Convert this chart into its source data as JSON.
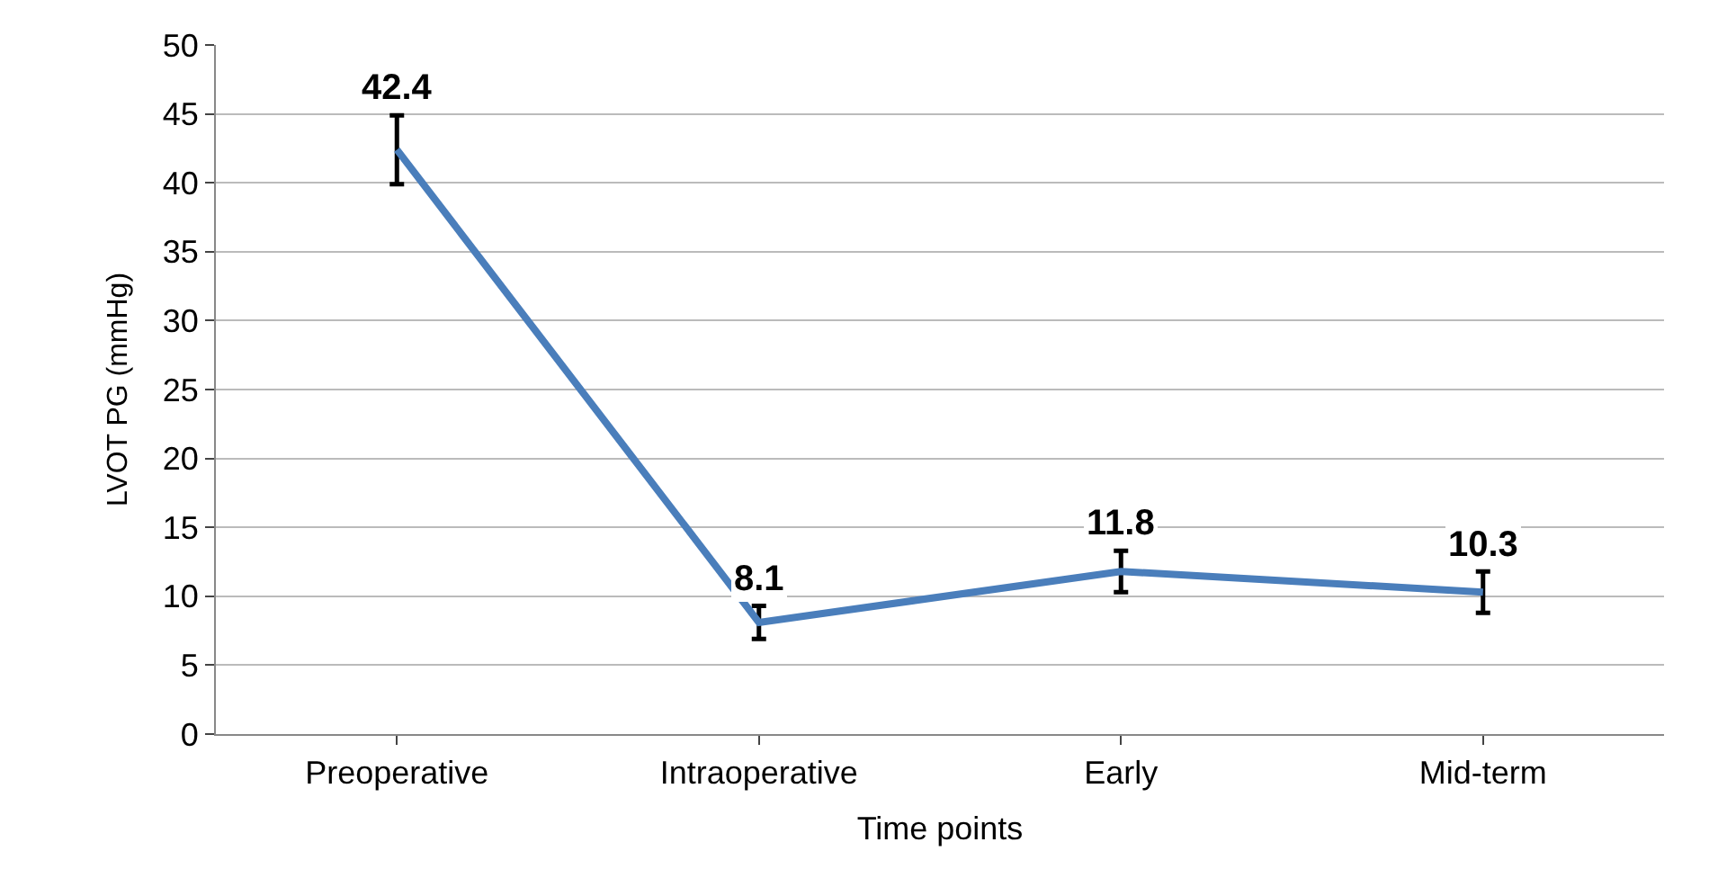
{
  "chart_data": {
    "type": "line",
    "xlabel": "Time points",
    "ylabel": "LVOT PG (mmHg)",
    "categories": [
      "Preoperative",
      "Intraoperative",
      "Early",
      "Mid-term"
    ],
    "series": [
      {
        "color": "#4a7ebb",
        "values": [
          42.4,
          8.1,
          11.8,
          10.3
        ],
        "errors": [
          2.5,
          1.2,
          1.5,
          1.5
        ]
      }
    ],
    "ylim": [
      0,
      50
    ],
    "yticks": [
      0,
      5,
      10,
      15,
      20,
      25,
      30,
      35,
      40,
      45,
      50
    ],
    "grid": "y",
    "data_labels": true,
    "marker": "none",
    "line_style": "solid",
    "legend": false
  }
}
